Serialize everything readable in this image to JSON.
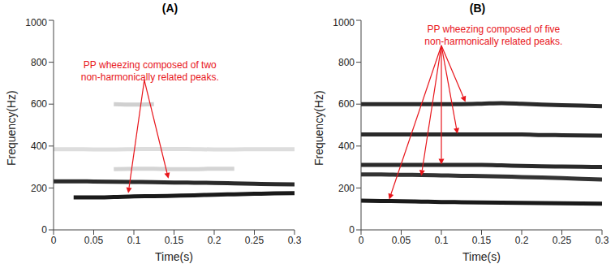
{
  "chart_data": [
    {
      "type": "line",
      "title": "(A)",
      "xlabel": "Time(s)",
      "ylabel": "Frequency(Hz)",
      "x": [
        0,
        0.025,
        0.05,
        0.075,
        0.1,
        0.125,
        0.15,
        0.175,
        0.2,
        0.225,
        0.25,
        0.275,
        0.3
      ],
      "xlim": [
        0,
        0.3
      ],
      "xticks": [
        0,
        0.05,
        0.1,
        0.15,
        0.2,
        0.25,
        0.3
      ],
      "ylim": [
        0,
        1000
      ],
      "yticks": [
        0,
        200,
        400,
        600,
        800,
        1000
      ],
      "grid": false,
      "series": [
        {
          "color": "#1a1a1a",
          "values": [
            null,
            155,
            155,
            157,
            160,
            161,
            163,
            165,
            168,
            170,
            172,
            174,
            175
          ]
        },
        {
          "color": "#2a2a2a",
          "values": [
            232,
            232,
            231,
            230,
            229,
            228,
            226,
            225,
            224,
            222,
            220,
            218,
            217
          ]
        },
        {
          "color": "#d4d4d4",
          "values": [
            null,
            null,
            null,
            290,
            292,
            292,
            290,
            290,
            292,
            292,
            null,
            null,
            null
          ]
        },
        {
          "color": "#dddddd",
          "values": [
            385,
            385,
            384,
            384,
            385,
            386,
            386,
            385,
            384,
            384,
            385,
            385,
            385
          ]
        },
        {
          "color": "#d0d0d0",
          "values": [
            null,
            null,
            null,
            600,
            598,
            600,
            null,
            null,
            null,
            null,
            null,
            null,
            null
          ]
        }
      ],
      "annotation": {
        "text": [
          "PP wheezing composed of two",
          "non-harmonically related peaks."
        ],
        "color": "#e8151b",
        "x": 0.12,
        "y": 770,
        "from": {
          "x": 0.113,
          "y": 715
        },
        "arrows": [
          {
            "x": 0.093,
            "y": 175
          },
          {
            "x": 0.143,
            "y": 245
          }
        ]
      }
    },
    {
      "type": "line",
      "title": "(B)",
      "xlabel": "Time(s)",
      "ylabel": "Frequency(Hz)",
      "x": [
        0,
        0.025,
        0.05,
        0.075,
        0.1,
        0.125,
        0.15,
        0.175,
        0.2,
        0.225,
        0.25,
        0.275,
        0.3
      ],
      "xlim": [
        0,
        0.3
      ],
      "xticks": [
        0,
        0.05,
        0.1,
        0.15,
        0.2,
        0.25,
        0.3
      ],
      "ylim": [
        0,
        1000
      ],
      "yticks": [
        0,
        200,
        400,
        600,
        800,
        1000
      ],
      "grid": false,
      "series": [
        {
          "color": "#2a2a2a",
          "values": [
            600,
            600,
            600,
            600,
            600,
            600,
            602,
            605,
            602,
            598,
            595,
            593,
            590
          ]
        },
        {
          "color": "#2a2a2a",
          "values": [
            455,
            455,
            455,
            455,
            455,
            455,
            455,
            455,
            455,
            453,
            452,
            451,
            450
          ]
        },
        {
          "color": "#2a2a2a",
          "values": [
            310,
            310,
            310,
            310,
            310,
            310,
            310,
            308,
            305,
            303,
            302,
            301,
            300
          ]
        },
        {
          "color": "#333333",
          "values": [
            265,
            265,
            263,
            262,
            260,
            258,
            257,
            255,
            252,
            250,
            247,
            243,
            240
          ]
        },
        {
          "color": "#1a1a1a",
          "values": [
            140,
            138,
            137,
            135,
            133,
            132,
            131,
            130,
            129,
            128,
            127,
            126,
            125
          ]
        }
      ],
      "annotation": {
        "text": [
          "PP wheezing composed of five",
          "non-harmonically related peaks."
        ],
        "color": "#e8151b",
        "x": 0.165,
        "y": 940,
        "from": {
          "x": 0.1,
          "y": 880
        },
        "arrows": [
          {
            "x": 0.035,
            "y": 145
          },
          {
            "x": 0.075,
            "y": 258
          },
          {
            "x": 0.1,
            "y": 312
          },
          {
            "x": 0.12,
            "y": 458
          },
          {
            "x": 0.13,
            "y": 610
          }
        ]
      }
    }
  ]
}
